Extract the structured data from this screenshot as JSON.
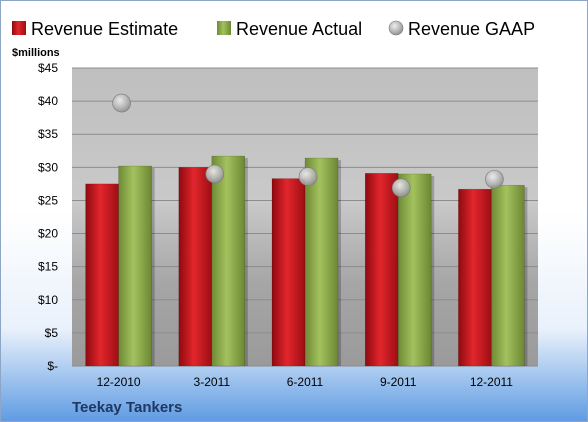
{
  "chart_data": {
    "type": "bar",
    "categories": [
      "12-2010",
      "3-2011",
      "6-2011",
      "9-2011",
      "12-2011"
    ],
    "series": [
      {
        "name": "Revenue Estimate",
        "kind": "bar",
        "color": "#c0141c",
        "values": [
          27.5,
          30.0,
          28.3,
          29.1,
          26.7
        ]
      },
      {
        "name": "Revenue Actual",
        "kind": "bar",
        "color": "#8aa94a",
        "values": [
          30.2,
          31.7,
          31.4,
          29.0,
          27.3
        ]
      },
      {
        "name": "Revenue GAAP",
        "kind": "scatter",
        "color": "#b8b8b8",
        "values": [
          39.7,
          29.0,
          28.6,
          26.9,
          28.2
        ]
      }
    ],
    "ylabel": "$millions",
    "ylim": [
      0,
      45
    ],
    "yticks": [
      0,
      5,
      10,
      15,
      20,
      25,
      30,
      35,
      40,
      45
    ],
    "ytick_labels": [
      "$-",
      "$5",
      "$10",
      "$15",
      "$20",
      "$25",
      "$30",
      "$35",
      "$40",
      "$45"
    ],
    "grid": true,
    "legend_position": "top"
  },
  "footer": {
    "company": "Teekay Tankers"
  }
}
